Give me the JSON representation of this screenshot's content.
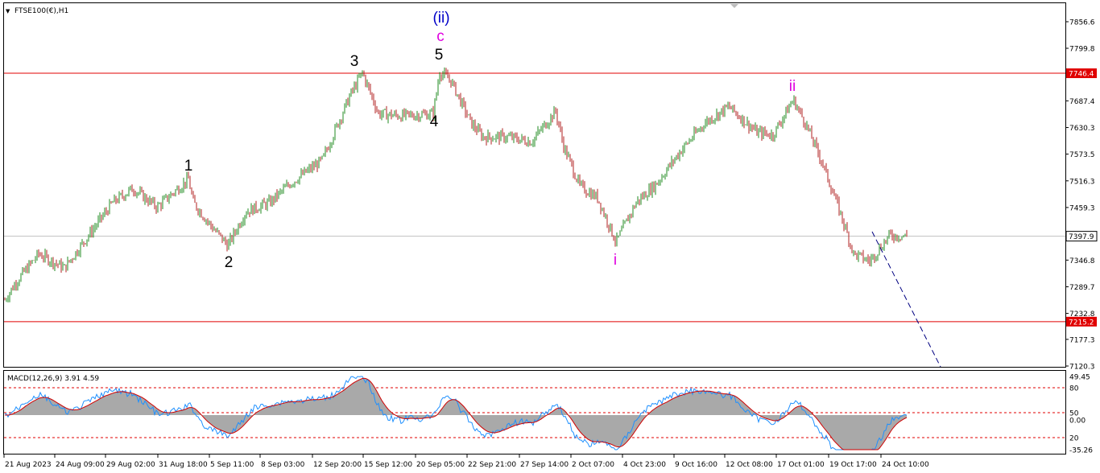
{
  "symbol_label": "FTSE100(€),H1",
  "macd_label": "MACD(12,26,9) 3.91 4.59",
  "colors": {
    "bull": "#228B22",
    "bear": "#B22222",
    "level_line": "#E00000",
    "current_line": "#C0C0C0",
    "wave_black": "#000000",
    "wave_magenta": "#E000E0",
    "wave_blue": "#0000C8",
    "macd_hist": "#A9A9A9",
    "macd_line": "#1E90FF",
    "signal_line": "#D00000",
    "projection": "#000080"
  },
  "price_axis_labels": [
    "7856.6",
    "7799.8",
    "7746.4",
    "7687.4",
    "7630.3",
    "7573.5",
    "7516.3",
    "7459.3",
    "7397.9",
    "7346.8",
    "7289.7",
    "7232.8",
    "7215.2",
    "7177.3",
    "7120.3"
  ],
  "macd_axis_labels": [
    "49.45",
    "80",
    "50",
    "0.00",
    "20",
    "-35.26"
  ],
  "time_labels": [
    "21 Aug 2023",
    "24 Aug 09:00",
    "29 Aug 02:00",
    "31 Aug 18:00",
    "5 Sep 11:00",
    "8 Sep 03:00",
    "12 Sep 20:00",
    "15 Sep 12:00",
    "20 Sep 05:00",
    "22 Sep 21:00",
    "27 Sep 14:00",
    "2 Oct 07:00",
    "4 Oct 23:00",
    "9 Oct 16:00",
    "12 Oct 08:00",
    "17 Oct 01:00",
    "19 Oct 17:00",
    "24 Oct 10:00"
  ],
  "horizontal_levels": {
    "upper": 7746.4,
    "lower": 7215.2,
    "current": 7397.9
  },
  "wave_labels": [
    {
      "text": "1",
      "color": "black"
    },
    {
      "text": "2",
      "color": "black"
    },
    {
      "text": "3",
      "color": "black"
    },
    {
      "text": "4",
      "color": "black"
    },
    {
      "text": "5",
      "color": "black"
    },
    {
      "text": "c",
      "color": "magenta"
    },
    {
      "text": "(ii)",
      "color": "blue"
    },
    {
      "text": "i",
      "color": "magenta"
    },
    {
      "text": "ii",
      "color": "magenta"
    }
  ],
  "chart_data": {
    "type": "line",
    "title": "FTSE100(€),H1",
    "ylim": [
      7120.3,
      7856.6
    ],
    "price_path": [
      {
        "t": "21 Aug 2023",
        "price": 7262
      },
      {
        "t": "22 Aug",
        "price": 7300
      },
      {
        "t": "24 Aug 09:00",
        "price": 7360
      },
      {
        "t": "25 Aug",
        "price": 7330
      },
      {
        "t": "29 Aug 02:00",
        "price": 7470
      },
      {
        "t": "30 Aug",
        "price": 7500
      },
      {
        "t": "31 Aug",
        "price": 7460
      },
      {
        "t": "wave 1",
        "price": 7520
      },
      {
        "t": "1 Sep",
        "price": 7470
      },
      {
        "t": "5 Sep 11:00",
        "price": 7420
      },
      {
        "t": "wave 2",
        "price": 7378
      },
      {
        "t": "7 Sep",
        "price": 7450
      },
      {
        "t": "8 Sep 03:00",
        "price": 7470
      },
      {
        "t": "11 Sep",
        "price": 7510
      },
      {
        "t": "12 Sep 20:00",
        "price": 7560
      },
      {
        "t": "14 Sep",
        "price": 7700
      },
      {
        "t": "wave 3",
        "price": 7748
      },
      {
        "t": "15 Sep 12:00",
        "price": 7660
      },
      {
        "t": "18 Sep",
        "price": 7655
      },
      {
        "t": "wave 4",
        "price": 7660
      },
      {
        "t": "19 Sep",
        "price": 7730
      },
      {
        "t": "wave 5 / c / (ii)",
        "price": 7750
      },
      {
        "t": "21 Sep",
        "price": 7640
      },
      {
        "t": "22 Sep 21:00",
        "price": 7610
      },
      {
        "t": "26 Sep",
        "price": 7610
      },
      {
        "t": "27 Sep 14:00",
        "price": 7600
      },
      {
        "t": "28 Sep",
        "price": 7665
      },
      {
        "t": "29 Sep",
        "price": 7590
      },
      {
        "t": "2 Oct 07:00",
        "price": 7505
      },
      {
        "t": "3 Oct",
        "price": 7480
      },
      {
        "t": "wave i",
        "price": 7385
      },
      {
        "t": "4 Oct 23:00",
        "price": 7470
      },
      {
        "t": "6 Oct",
        "price": 7510
      },
      {
        "t": "9 Oct 16:00",
        "price": 7580
      },
      {
        "t": "10 Oct",
        "price": 7640
      },
      {
        "t": "11 Oct",
        "price": 7675
      },
      {
        "t": "12 Oct 08:00",
        "price": 7620
      },
      {
        "t": "13 Oct",
        "price": 7615
      },
      {
        "t": "16 Oct",
        "price": 7660
      },
      {
        "t": "wave ii",
        "price": 7690
      },
      {
        "t": "17 Oct 01:00",
        "price": 7640
      },
      {
        "t": "18 Oct",
        "price": 7560
      },
      {
        "t": "19 Oct 17:00",
        "price": 7440
      },
      {
        "t": "20 Oct",
        "price": 7360
      },
      {
        "t": "23 Oct",
        "price": 7345
      },
      {
        "t": "24 Oct 10:00",
        "price": 7400
      },
      {
        "t": "25 Oct",
        "price": 7397.9
      }
    ],
    "levels": [
      7746.4,
      7397.9,
      7215.2
    ]
  }
}
